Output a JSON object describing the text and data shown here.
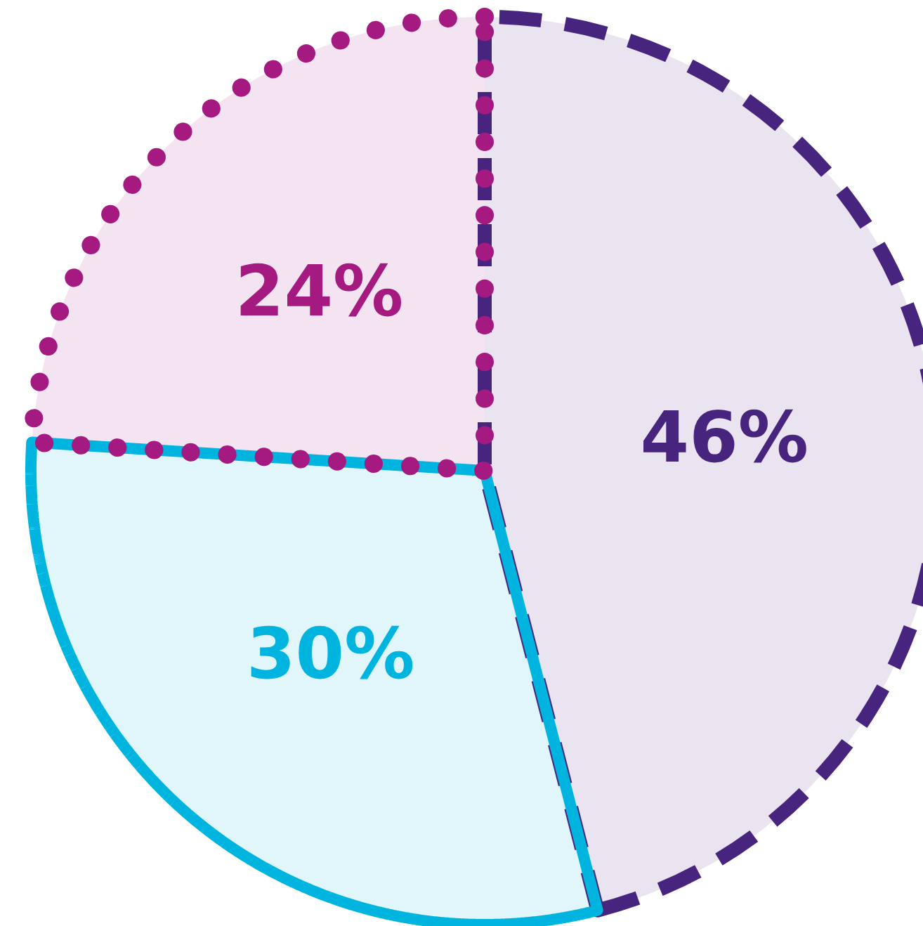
{
  "chart_data": {
    "type": "pie",
    "categories": [
      null,
      null,
      null
    ],
    "values": [
      46,
      30,
      24
    ],
    "colors": [
      "#47257f",
      "#00b4e0",
      "#a51a80"
    ],
    "value_labels": [
      "46%",
      "30%",
      "24%"
    ],
    "line_style": [
      "dashed",
      "solid",
      "dotted"
    ]
  }
}
